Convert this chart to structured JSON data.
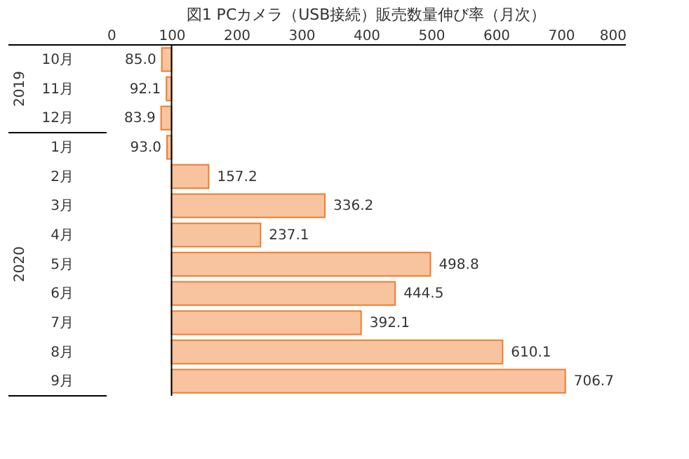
{
  "chart_data": {
    "type": "bar",
    "orientation": "horizontal",
    "title": "図1 PCカメラ（USB接続）販売数量伸び率（月次）",
    "categories": [
      "10月",
      "11月",
      "12月",
      "1月",
      "2月",
      "3月",
      "4月",
      "5月",
      "6月",
      "7月",
      "8月",
      "9月"
    ],
    "base": [
      100,
      100,
      100,
      100,
      100,
      100,
      100,
      100,
      100,
      100,
      100,
      100
    ],
    "values": [
      -15.0,
      -7.9,
      -16.1,
      -7.0,
      57.2,
      236.2,
      137.1,
      398.8,
      344.5,
      292.1,
      510.1,
      606.7
    ],
    "value_labels": [
      "85.0",
      "92.1",
      "83.9",
      "93.0",
      "157.2",
      "336.2",
      "237.1",
      "498.8",
      "444.5",
      "392.1",
      "610.1",
      "706.7"
    ],
    "color": "#f8c4a0",
    "xlim": [
      0,
      800
    ],
    "xticks": [
      0,
      100,
      200,
      300,
      400,
      500,
      600,
      700,
      800
    ],
    "annotations": [
      "2019",
      "2020"
    ],
    "ref_lines": [
      {
        "axis": "x",
        "value": 100,
        "color": "#000000"
      }
    ],
    "grid": false
  }
}
